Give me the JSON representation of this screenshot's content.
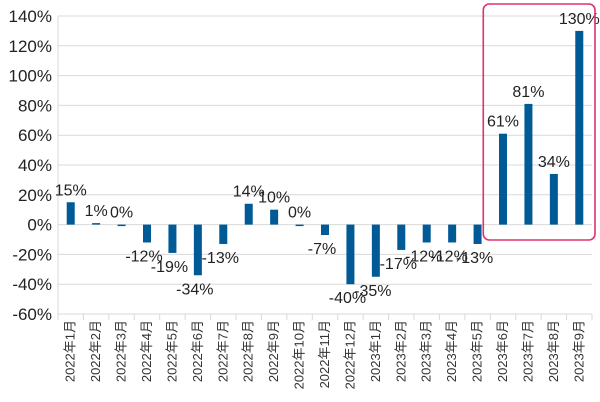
{
  "chart_data": {
    "type": "bar",
    "categories": [
      "2022年1月",
      "2022年2月",
      "2022年3月",
      "2022年4月",
      "2022年5月",
      "2022年6月",
      "2022年7月",
      "2022年8月",
      "2022年9月",
      "2022年10月",
      "2022年11月",
      "2022年12月",
      "2023年1月",
      "2023年2月",
      "2023年3月",
      "2023年4月",
      "2023年5月",
      "2023年6月",
      "2023年7月",
      "2023年8月",
      "2023年9月"
    ],
    "values": [
      15,
      1,
      0,
      -12,
      -19,
      -34,
      -13,
      14,
      10,
      0,
      -7,
      -40,
      -35,
      -17,
      -12,
      -12,
      -13,
      61,
      81,
      34,
      130
    ],
    "data_labels": [
      "15%",
      "1%",
      "0%",
      "-12%",
      "-19%",
      "-34%",
      "-13%",
      "14%",
      "10%",
      "0%",
      "-7%",
      "-40%",
      "-35%",
      "-17%",
      "-12%",
      "-12%",
      "-13%",
      "61%",
      "81%",
      "34%",
      "130%"
    ],
    "ylim": [
      -60,
      140
    ],
    "yticks": [
      -60,
      -40,
      -20,
      0,
      20,
      40,
      60,
      80,
      100,
      120,
      140
    ],
    "ytick_labels": [
      "-60%",
      "-40%",
      "-20%",
      "0%",
      "20%",
      "40%",
      "60%",
      "80%",
      "100%",
      "120%",
      "140%"
    ],
    "grid": true,
    "bar_color": "#005A96",
    "highlight": {
      "from_index": 17,
      "to_index": 20,
      "color": "#E0306E"
    },
    "title": "",
    "xlabel": "",
    "ylabel": ""
  }
}
